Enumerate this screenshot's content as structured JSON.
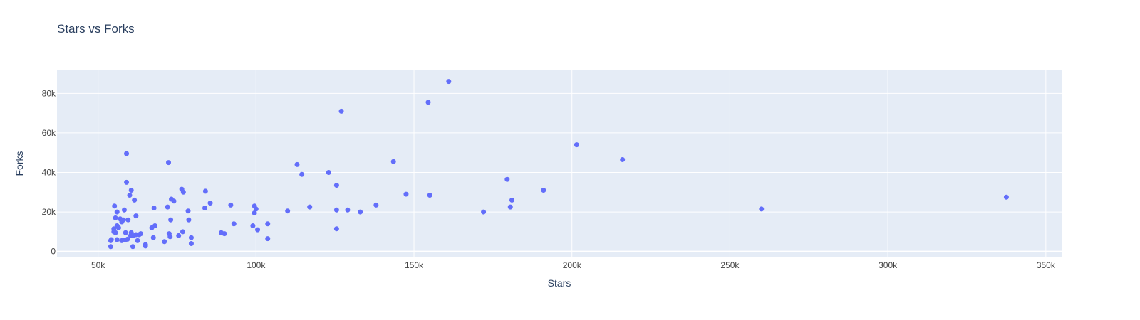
{
  "chart_data": {
    "type": "scatter",
    "title": "Stars vs Forks",
    "xlabel": "Stars",
    "ylabel": "Forks",
    "xlim": [
      37000,
      355000
    ],
    "ylim": [
      -3000,
      92000
    ],
    "x_ticks": [
      {
        "value": 50000,
        "label": "50k"
      },
      {
        "value": 100000,
        "label": "100k"
      },
      {
        "value": 150000,
        "label": "150k"
      },
      {
        "value": 200000,
        "label": "200k"
      },
      {
        "value": 250000,
        "label": "250k"
      },
      {
        "value": 300000,
        "label": "300k"
      },
      {
        "value": 350000,
        "label": "350k"
      }
    ],
    "y_ticks": [
      {
        "value": 0,
        "label": "0"
      },
      {
        "value": 20000,
        "label": "20k"
      },
      {
        "value": 40000,
        "label": "40k"
      },
      {
        "value": 60000,
        "label": "60k"
      },
      {
        "value": 80000,
        "label": "80k"
      }
    ],
    "grid": true,
    "legend": "none",
    "colors": {
      "marker": "#636efa",
      "plot_bg": "#e5ecf6",
      "grid": "#ffffff",
      "text": "#2a3f5f",
      "tick_text": "#444444"
    },
    "points": [
      {
        "x": 54000,
        "y": 2500
      },
      {
        "x": 54000,
        "y": 5500
      },
      {
        "x": 54200,
        "y": 6000
      },
      {
        "x": 55000,
        "y": 10000
      },
      {
        "x": 55000,
        "y": 11500
      },
      {
        "x": 55200,
        "y": 23000
      },
      {
        "x": 55500,
        "y": 17000
      },
      {
        "x": 55500,
        "y": 9500
      },
      {
        "x": 56000,
        "y": 13000
      },
      {
        "x": 56000,
        "y": 20000
      },
      {
        "x": 56000,
        "y": 6000
      },
      {
        "x": 56500,
        "y": 12000
      },
      {
        "x": 57000,
        "y": 16500
      },
      {
        "x": 57500,
        "y": 5500
      },
      {
        "x": 57500,
        "y": 15000
      },
      {
        "x": 58000,
        "y": 16000
      },
      {
        "x": 58300,
        "y": 21000
      },
      {
        "x": 58500,
        "y": 5800
      },
      {
        "x": 58700,
        "y": 9500
      },
      {
        "x": 59000,
        "y": 49500
      },
      {
        "x": 59000,
        "y": 35000
      },
      {
        "x": 59300,
        "y": 6200
      },
      {
        "x": 59500,
        "y": 16000
      },
      {
        "x": 60000,
        "y": 28500
      },
      {
        "x": 60300,
        "y": 8000
      },
      {
        "x": 60500,
        "y": 31000
      },
      {
        "x": 60500,
        "y": 9500
      },
      {
        "x": 61000,
        "y": 8000
      },
      {
        "x": 61000,
        "y": 2500
      },
      {
        "x": 61500,
        "y": 26000
      },
      {
        "x": 62000,
        "y": 18000
      },
      {
        "x": 62000,
        "y": 8500
      },
      {
        "x": 62500,
        "y": 5500
      },
      {
        "x": 63000,
        "y": 8500
      },
      {
        "x": 63500,
        "y": 9000
      },
      {
        "x": 65000,
        "y": 3500
      },
      {
        "x": 65000,
        "y": 2800
      },
      {
        "x": 67000,
        "y": 12000
      },
      {
        "x": 67500,
        "y": 7000
      },
      {
        "x": 67700,
        "y": 22000
      },
      {
        "x": 68000,
        "y": 13000
      },
      {
        "x": 71000,
        "y": 5000
      },
      {
        "x": 72000,
        "y": 22500
      },
      {
        "x": 72300,
        "y": 45000
      },
      {
        "x": 72500,
        "y": 9000
      },
      {
        "x": 72800,
        "y": 7500
      },
      {
        "x": 73000,
        "y": 16000
      },
      {
        "x": 73200,
        "y": 26500
      },
      {
        "x": 74000,
        "y": 25500
      },
      {
        "x": 75500,
        "y": 8000
      },
      {
        "x": 76500,
        "y": 31500
      },
      {
        "x": 76800,
        "y": 10000
      },
      {
        "x": 77000,
        "y": 30000
      },
      {
        "x": 78500,
        "y": 20500
      },
      {
        "x": 78700,
        "y": 16000
      },
      {
        "x": 79500,
        "y": 7000
      },
      {
        "x": 79500,
        "y": 4000
      },
      {
        "x": 83800,
        "y": 22000
      },
      {
        "x": 84000,
        "y": 30500
      },
      {
        "x": 85500,
        "y": 24500
      },
      {
        "x": 89000,
        "y": 9500
      },
      {
        "x": 90000,
        "y": 9000
      },
      {
        "x": 92000,
        "y": 23500
      },
      {
        "x": 93000,
        "y": 14000
      },
      {
        "x": 99000,
        "y": 13000
      },
      {
        "x": 99500,
        "y": 23000
      },
      {
        "x": 99500,
        "y": 19500
      },
      {
        "x": 100000,
        "y": 21500
      },
      {
        "x": 100500,
        "y": 11000
      },
      {
        "x": 103700,
        "y": 14000
      },
      {
        "x": 103700,
        "y": 6500
      },
      {
        "x": 110000,
        "y": 20500
      },
      {
        "x": 113000,
        "y": 44000
      },
      {
        "x": 114500,
        "y": 39000
      },
      {
        "x": 117000,
        "y": 22500
      },
      {
        "x": 123000,
        "y": 40000
      },
      {
        "x": 125500,
        "y": 33500
      },
      {
        "x": 125500,
        "y": 21000
      },
      {
        "x": 125500,
        "y": 11500
      },
      {
        "x": 127000,
        "y": 71000
      },
      {
        "x": 129000,
        "y": 21000
      },
      {
        "x": 133000,
        "y": 20000
      },
      {
        "x": 138000,
        "y": 23500
      },
      {
        "x": 143500,
        "y": 45500
      },
      {
        "x": 147500,
        "y": 29000
      },
      {
        "x": 154500,
        "y": 75500
      },
      {
        "x": 155000,
        "y": 28500
      },
      {
        "x": 161000,
        "y": 86000
      },
      {
        "x": 172000,
        "y": 20000
      },
      {
        "x": 179500,
        "y": 36500
      },
      {
        "x": 180500,
        "y": 22500
      },
      {
        "x": 181000,
        "y": 26000
      },
      {
        "x": 191000,
        "y": 31000
      },
      {
        "x": 201500,
        "y": 54000
      },
      {
        "x": 216000,
        "y": 46500
      },
      {
        "x": 260000,
        "y": 21500
      },
      {
        "x": 337500,
        "y": 27500
      }
    ]
  }
}
